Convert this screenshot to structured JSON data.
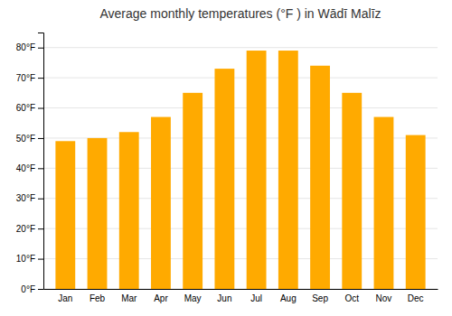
{
  "chart_data": {
    "type": "bar",
    "title": "Average monthly temperatures (°F ) in Wādī Malīz",
    "categories": [
      "Jan",
      "Feb",
      "Mar",
      "Apr",
      "May",
      "Jun",
      "Jul",
      "Aug",
      "Sep",
      "Oct",
      "Nov",
      "Dec"
    ],
    "values": [
      49,
      50,
      52,
      57,
      65,
      73,
      79,
      79,
      74,
      65,
      57,
      51
    ],
    "color": "#FFAA00",
    "ylim": [
      0,
      85
    ],
    "yticks": [
      {
        "value": 0,
        "label": "0°F"
      },
      {
        "value": 10,
        "label": "10°F"
      },
      {
        "value": 20,
        "label": "20°F"
      },
      {
        "value": 30,
        "label": "30°F"
      },
      {
        "value": 40,
        "label": "40°F"
      },
      {
        "value": 50,
        "label": "50°F"
      },
      {
        "value": 60,
        "label": "60°F"
      },
      {
        "value": 70,
        "label": "70°F"
      },
      {
        "value": 80,
        "label": "80°F"
      }
    ],
    "grid": true
  }
}
